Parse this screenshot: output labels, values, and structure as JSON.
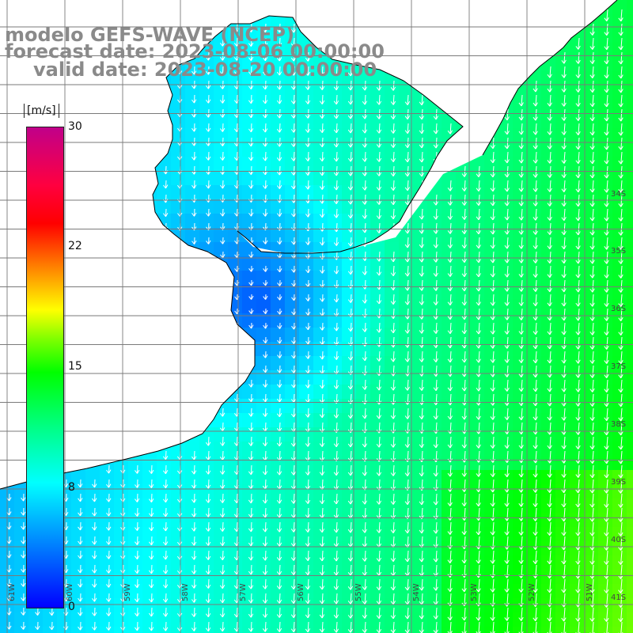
{
  "title": {
    "line1": "modelo GEFS-WAVE (NCEP)",
    "line2": "forecast date: 2023-08-06 00:00:00",
    "line3": "valid date: 2023-08-20 00:00:00"
  },
  "colorbar": {
    "units": "[m/s]",
    "ticks": [
      "30",
      "22",
      "15",
      "8",
      "0"
    ],
    "min": 0,
    "max": 30,
    "colors": [
      "#0000ff",
      "#0080ff",
      "#00ffff",
      "#00ff80",
      "#00ff00",
      "#80ff00",
      "#ffff00",
      "#ff8000",
      "#ff0000",
      "#c0008a"
    ]
  },
  "map": {
    "latitude_labels": [
      "34S",
      "35S",
      "36S",
      "37S",
      "38S",
      "39S",
      "40S",
      "41S"
    ],
    "longitude_labels": [
      "61W",
      "60W",
      "59W",
      "58W",
      "57W",
      "56W",
      "55W",
      "54W",
      "53W",
      "52W",
      "51W"
    ],
    "wind_direction": "from the north-northeast (arrows pointing south-southwest)",
    "land_color": "#ffffff",
    "coastline_color": "#000000",
    "grid_color": "#7a7a7a"
  }
}
